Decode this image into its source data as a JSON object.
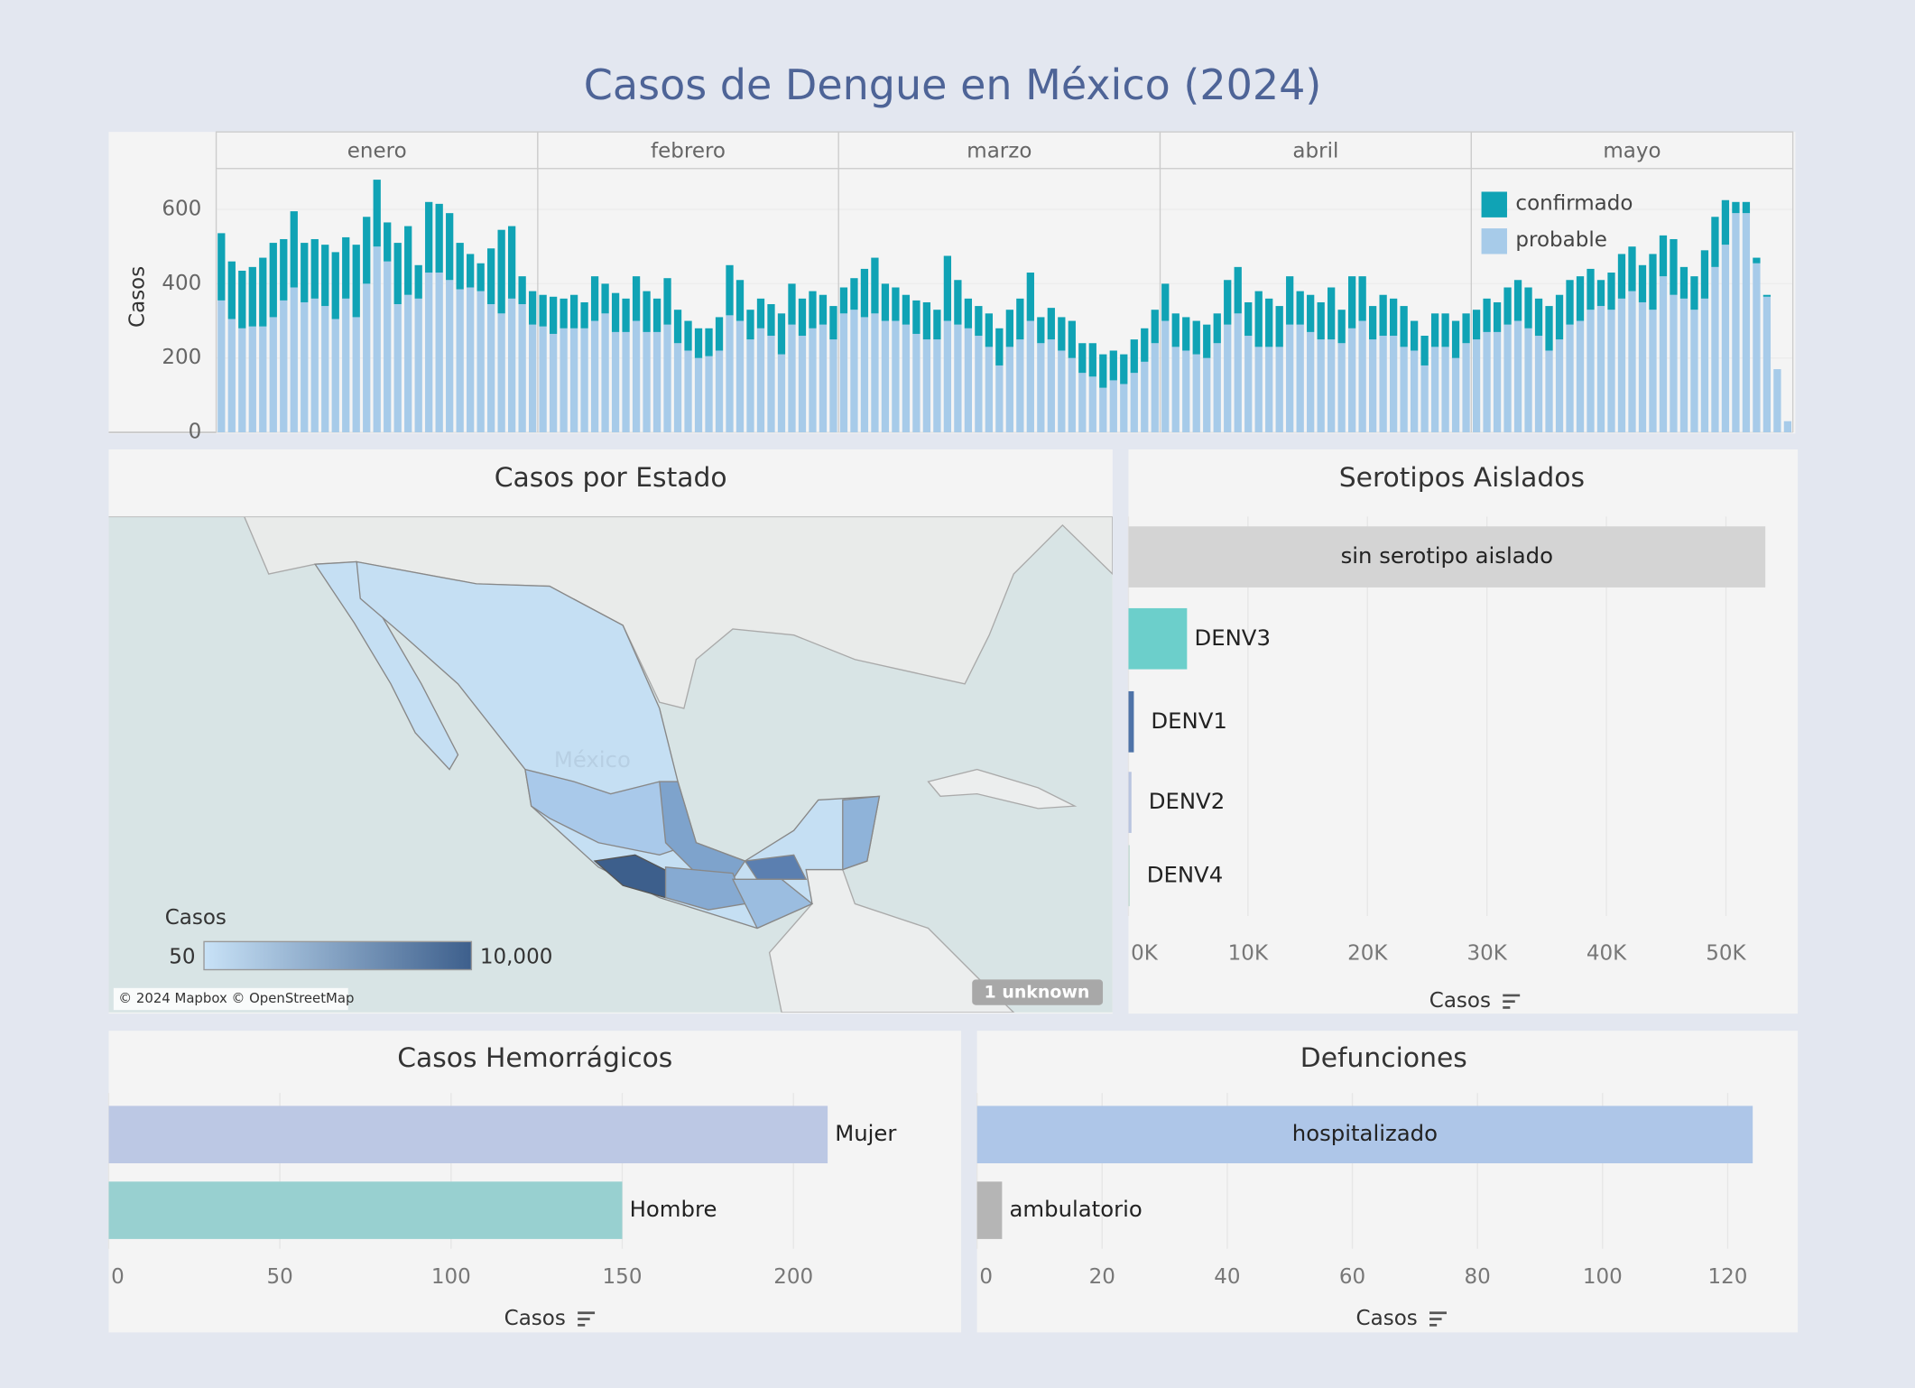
{
  "title": "Casos de Dengue en México (2024)",
  "chart_data": [
    {
      "type": "stacked_bar",
      "categories": [
        "enero",
        "febrero",
        "marzo",
        "abril",
        "mayo"
      ],
      "y_label": "Casos",
      "ylim": [
        0,
        710
      ],
      "yticks": [
        0,
        200,
        400,
        600
      ],
      "legend": "top-right",
      "series": [
        {
          "name": "confirmado",
          "color": "#10a3b5",
          "values": [
            [
              181,
              155,
              155,
              160,
              185,
              200,
              165,
              205,
              160,
              160,
              165,
              180,
              165,
              195,
              180,
              180,
              105,
              165,
              185,
              90,
              190,
              185,
              180,
              125,
              90,
              75,
              150,
              225,
              195,
              75,
              90
            ],
            [
              85,
              100,
              80,
              90,
              70,
              120,
              80,
              105,
              90,
              120,
              110,
              90,
              125,
              90,
              80,
              80,
              75,
              90,
              135,
              110,
              80,
              80,
              85,
              110,
              110,
              100,
              100,
              80,
              90
            ],
            [
              70,
              85,
              130,
              150,
              100,
              90,
              80,
              90,
              100,
              80,
              175,
              120,
              80,
              80,
              90,
              100,
              100,
              110,
              130,
              70,
              85,
              90,
              100,
              80,
              90,
              90,
              80,
              80,
              90,
              90,
              90
            ],
            [
              100,
              90,
              90,
              90,
              90,
              80,
              120,
              125,
              90,
              150,
              130,
              110,
              130,
              90,
              100,
              100,
              140,
              90,
              140,
              120,
              90,
              110,
              100,
              110,
              80,
              80,
              90,
              90,
              100,
              80
            ],
            [
              80,
              90,
              80,
              100,
              110,
              110,
              100,
              120,
              120,
              120,
              120,
              110,
              70,
              100,
              120,
              120,
              100,
              150,
              110,
              150,
              85,
              90,
              130,
              135,
              120,
              30,
              30,
              15,
              5,
              0,
              0
            ]
          ]
        },
        {
          "name": "probable",
          "color": "#a7cbe9",
          "values": [
            [
              355,
              305,
              280,
              285,
              285,
              310,
              355,
              390,
              350,
              360,
              340,
              305,
              360,
              310,
              400,
              500,
              460,
              345,
              370,
              360,
              430,
              430,
              410,
              385,
              390,
              380,
              345,
              320,
              360,
              345,
              290
            ],
            [
              285,
              265,
              280,
              280,
              280,
              300,
              320,
              270,
              270,
              300,
              270,
              270,
              290,
              240,
              220,
              200,
              205,
              220,
              315,
              300,
              250,
              280,
              260,
              210,
              290,
              260,
              280,
              290,
              250
            ],
            [
              320,
              330,
              310,
              320,
              300,
              300,
              290,
              265,
              250,
              250,
              300,
              290,
              280,
              260,
              230,
              180,
              230,
              250,
              300,
              240,
              250,
              220,
              200,
              160,
              150,
              120,
              140,
              130,
              160,
              190,
              240
            ],
            [
              300,
              230,
              220,
              210,
              200,
              240,
              290,
              320,
              260,
              230,
              230,
              230,
              290,
              290,
              270,
              250,
              250,
              240,
              280,
              300,
              250,
              260,
              260,
              230,
              220,
              180,
              230,
              230,
              200,
              240
            ],
            [
              250,
              270,
              270,
              290,
              300,
              280,
              260,
              220,
              250,
              290,
              300,
              330,
              340,
              330,
              360,
              380,
              350,
              330,
              420,
              370,
              360,
              330,
              360,
              445,
              505,
              590,
              590,
              455,
              365,
              170,
              30
            ]
          ]
        }
      ]
    },
    {
      "type": "map",
      "title": "Casos por Estado",
      "watermark": "México",
      "legend_title": "Casos",
      "colorscale": {
        "colors": [
          "#c8e2f7",
          "#3d5f8c"
        ],
        "ticks": [
          50,
          {
            "value": 10000,
            "label": "10,000"
          }
        ]
      },
      "unknown_note": "1 unknown",
      "attribution": "© 2024 Mapbox © OpenStreetMap"
    },
    {
      "type": "hbar",
      "title": "Serotipos Aislados",
      "categories": [
        "sin serotipo aislado",
        "DENV3",
        "DENV1",
        "DENV2",
        "DENV4"
      ],
      "values": [
        53300,
        4900,
        450,
        250,
        100
      ],
      "colors": [
        "#d4d4d4",
        "#6ccfcb",
        "#4e73a8",
        "#b8c4e0",
        "#bcd6cf"
      ],
      "xlim": [
        0,
        55500
      ],
      "xticks": [
        {
          "value": 0,
          "label": "0K"
        },
        {
          "value": 10000,
          "label": "10K"
        },
        {
          "value": 20000,
          "label": "20K"
        },
        {
          "value": 30000,
          "label": "30K"
        },
        {
          "value": 40000,
          "label": "40K"
        },
        {
          "value": 50000,
          "label": "50K"
        }
      ],
      "x_label": "Casos",
      "grid": true
    },
    {
      "type": "hbar",
      "title": "Casos Hemorrágicos",
      "categories": [
        "Mujer",
        "Hombre"
      ],
      "values": [
        210,
        150
      ],
      "colors": [
        "#bcc8e4",
        "#98d0d0"
      ],
      "xlim": [
        0,
        249
      ],
      "xticks": [
        0,
        50,
        100,
        150,
        200
      ],
      "x_label": "Casos",
      "grid": true
    },
    {
      "type": "hbar",
      "title": "Defunciones",
      "categories": [
        "hospitalizado",
        "ambulatorio"
      ],
      "values": [
        124,
        4
      ],
      "colors": [
        "#aec6e8",
        "#b5b5b5"
      ],
      "xlim": [
        0,
        131
      ],
      "xticks": [
        0,
        20,
        40,
        60,
        80,
        100,
        120
      ],
      "x_label": "Casos",
      "grid": true
    }
  ]
}
